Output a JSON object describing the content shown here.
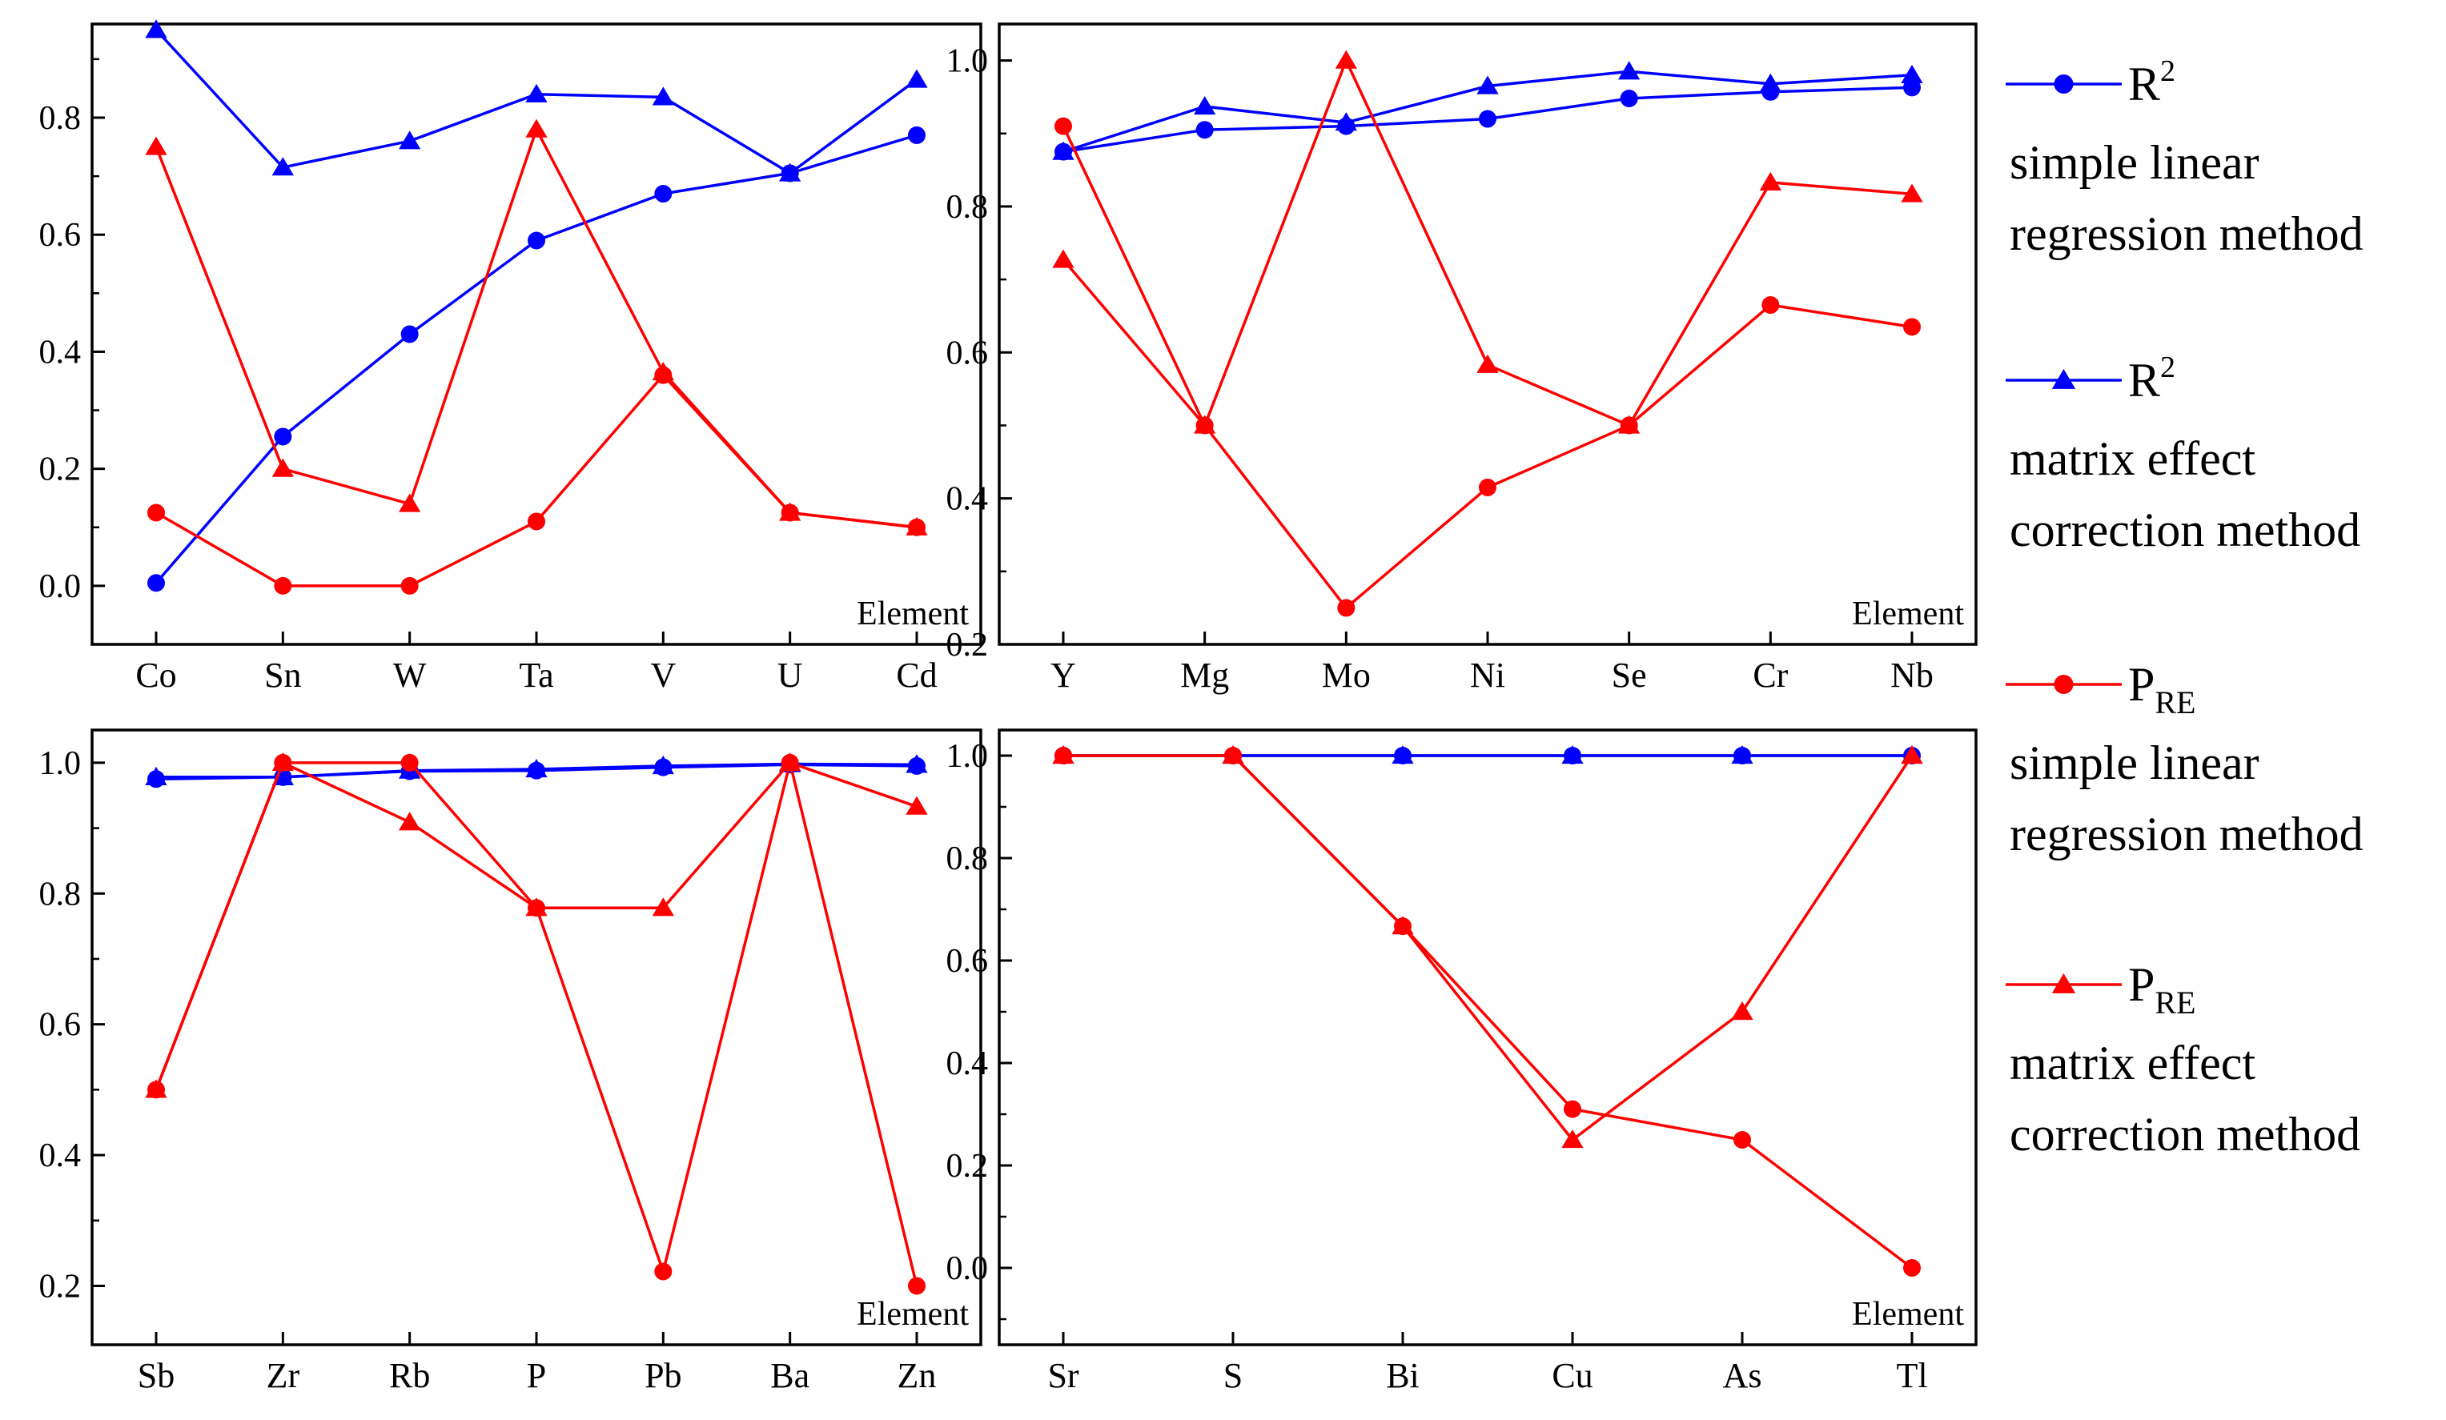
{
  "colors": {
    "r2": "#0000ff",
    "pre": "#ff0000",
    "axis": "#000000",
    "background": "#ffffff"
  },
  "legend": [
    {
      "symbol": "circle",
      "color": "#0000ff",
      "title_main": "R",
      "title_sup": "2",
      "title_sub": "",
      "line1": "simple linear",
      "line2": "regression method"
    },
    {
      "symbol": "triangle",
      "color": "#0000ff",
      "title_main": "R",
      "title_sup": "2",
      "title_sub": "",
      "line1": "matrix effect",
      "line2": "correction method"
    },
    {
      "symbol": "circle",
      "color": "#ff0000",
      "title_main": "P",
      "title_sup": "",
      "title_sub": "RE",
      "line1": "simple linear",
      "line2": "regression method"
    },
    {
      "symbol": "triangle",
      "color": "#ff0000",
      "title_main": "P",
      "title_sup": "",
      "title_sub": "RE",
      "line1": "matrix effect",
      "line2": "correction method"
    }
  ],
  "chart_data": [
    {
      "type": "line",
      "xlabel": "Element",
      "ylabel": "",
      "ylim": [
        -0.1,
        0.96
      ],
      "yticks": [
        0.0,
        0.2,
        0.4,
        0.6,
        0.8
      ],
      "ytick_labels": [
        "0.0",
        "0.2",
        "0.4",
        "0.6",
        "0.8"
      ],
      "categories": [
        "Co",
        "Sn",
        "W",
        "Ta",
        "V",
        "U",
        "Cd"
      ],
      "series": [
        {
          "name": "R2 simple linear regression method",
          "color": "#0000ff",
          "marker": "circle",
          "values": [
            0.005,
            0.255,
            0.43,
            0.59,
            0.67,
            0.705,
            0.77
          ]
        },
        {
          "name": "R2 matrix effect correction method",
          "color": "#0000ff",
          "marker": "triangle",
          "values": [
            0.95,
            0.715,
            0.76,
            0.84,
            0.835,
            0.705,
            0.865
          ]
        },
        {
          "name": "PRE simple linear regression method",
          "color": "#ff0000",
          "marker": "circle",
          "values": [
            0.125,
            0.0,
            0.0,
            0.11,
            0.36,
            0.125,
            0.1
          ]
        },
        {
          "name": "PRE matrix effect correction method",
          "color": "#ff0000",
          "marker": "triangle",
          "values": [
            0.75,
            0.2,
            0.14,
            0.78,
            0.365,
            0.125,
            0.1
          ]
        }
      ]
    },
    {
      "type": "line",
      "xlabel": "Element",
      "ylabel": "",
      "ylim": [
        0.2,
        1.05
      ],
      "yticks": [
        0.2,
        0.4,
        0.6,
        0.8,
        1.0
      ],
      "ytick_labels": [
        "0.2",
        "0.4",
        "0.6",
        "0.8",
        "1.0"
      ],
      "categories": [
        "Y",
        "Mg",
        "Mo",
        "Ni",
        "Se",
        "Cr",
        "Nb"
      ],
      "series": [
        {
          "name": "R2 simple linear regression method",
          "color": "#0000ff",
          "marker": "circle",
          "values": [
            0.875,
            0.905,
            0.91,
            0.92,
            0.948,
            0.957,
            0.963
          ]
        },
        {
          "name": "R2 matrix effect correction method",
          "color": "#0000ff",
          "marker": "triangle",
          "values": [
            0.875,
            0.937,
            0.915,
            0.965,
            0.985,
            0.968,
            0.98
          ]
        },
        {
          "name": "PRE simple linear regression method",
          "color": "#ff0000",
          "marker": "circle",
          "values": [
            0.91,
            0.5,
            0.25,
            0.415,
            0.5,
            0.665,
            0.635
          ]
        },
        {
          "name": "PRE matrix effect correction method",
          "color": "#ff0000",
          "marker": "triangle",
          "values": [
            0.727,
            0.5,
            1.0,
            0.583,
            0.5,
            0.833,
            0.817
          ]
        }
      ]
    },
    {
      "type": "line",
      "xlabel": "Element",
      "ylabel": "",
      "ylim": [
        0.11,
        1.05
      ],
      "yticks": [
        0.2,
        0.4,
        0.6,
        0.8,
        1.0
      ],
      "ytick_labels": [
        "0.2",
        "0.4",
        "0.6",
        "0.8",
        "1.0"
      ],
      "categories": [
        "Sb",
        "Zr",
        "Rb",
        "P",
        "Pb",
        "Ba",
        "Zn"
      ],
      "series": [
        {
          "name": "R2 simple linear regression method",
          "color": "#0000ff",
          "marker": "circle",
          "values": [
            0.975,
            0.978,
            0.987,
            0.988,
            0.993,
            0.997,
            0.995
          ]
        },
        {
          "name": "R2 matrix effect correction method",
          "color": "#0000ff",
          "marker": "triangle",
          "values": [
            0.978,
            0.978,
            0.988,
            0.99,
            0.995,
            0.998,
            0.997
          ]
        },
        {
          "name": "PRE simple linear regression method",
          "color": "#ff0000",
          "marker": "circle",
          "values": [
            0.5,
            1.0,
            1.0,
            0.778,
            0.222,
            1.0,
            0.2
          ]
        },
        {
          "name": "PRE matrix effect correction method",
          "color": "#ff0000",
          "marker": "triangle",
          "values": [
            0.5,
            1.0,
            0.909,
            0.778,
            0.778,
            1.0,
            0.933
          ]
        }
      ]
    },
    {
      "type": "line",
      "xlabel": "Element",
      "ylabel": "",
      "ylim": [
        -0.15,
        1.05
      ],
      "yticks": [
        0.0,
        0.2,
        0.4,
        0.6,
        0.8,
        1.0
      ],
      "ytick_labels": [
        "0.0",
        "0.2",
        "0.4",
        "0.6",
        "0.8",
        "1.0"
      ],
      "categories": [
        "Sr",
        "S",
        "Bi",
        "Cu",
        "As",
        "Tl"
      ],
      "series": [
        {
          "name": "R2 simple linear regression method",
          "color": "#0000ff",
          "marker": "circle",
          "values": [
            1.0,
            1.0,
            1.0,
            1.0,
            1.0,
            1.0
          ]
        },
        {
          "name": "R2 matrix effect correction method",
          "color": "#0000ff",
          "marker": "triangle",
          "values": [
            1.0,
            1.0,
            1.0,
            1.0,
            1.0,
            1.0
          ]
        },
        {
          "name": "PRE simple linear regression method",
          "color": "#ff0000",
          "marker": "circle",
          "values": [
            1.0,
            1.0,
            0.667,
            0.31,
            0.25,
            0.0
          ]
        },
        {
          "name": "PRE matrix effect correction method",
          "color": "#ff0000",
          "marker": "triangle",
          "values": [
            1.0,
            1.0,
            0.667,
            0.25,
            0.5,
            1.0
          ]
        }
      ]
    }
  ]
}
